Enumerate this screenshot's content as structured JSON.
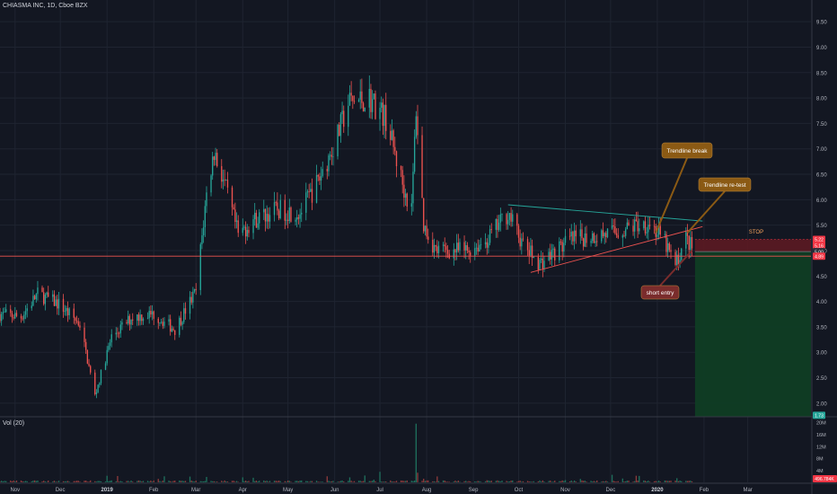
{
  "header": {
    "title": "CHIASMA INC, 1D, Cboe BZX"
  },
  "volume_header": "Vol (20)",
  "colors": {
    "up": "#26a69a",
    "down": "#ef5350",
    "background": "#131722",
    "grid": "#1f2431"
  },
  "chart_data": {
    "type": "candlestick",
    "title": "CHIASMA INC, 1D, Cboe BZX",
    "ylim": [
      1.75,
      9.75
    ],
    "yticks": [
      "9.50",
      "9.00",
      "8.50",
      "8.00",
      "7.50",
      "7.00",
      "6.50",
      "6.00",
      "5.50",
      "5.00",
      "4.50",
      "4.00",
      "3.50",
      "3.00",
      "2.50",
      "2.00"
    ],
    "volume_ticks": [
      "20M",
      "16M",
      "12M",
      "8M",
      "4M"
    ],
    "xticks": [
      "Nov",
      "Dec",
      "2019",
      "Feb",
      "Mar",
      "Apr",
      "May",
      "Jun",
      "Jul",
      "Aug",
      "Sep",
      "Oct",
      "Nov",
      "Dec",
      "2020",
      "Feb",
      "Mar"
    ],
    "price_anchors": [
      {
        "date": "2018-10-22",
        "close": 3.75
      },
      {
        "date": "2018-11-05",
        "close": 3.7
      },
      {
        "date": "2018-11-16",
        "close": 4.15
      },
      {
        "date": "2018-11-30",
        "close": 3.95
      },
      {
        "date": "2018-12-14",
        "close": 3.55
      },
      {
        "date": "2018-12-24",
        "close": 2.15
      },
      {
        "date": "2019-01-04",
        "close": 3.3
      },
      {
        "date": "2019-01-18",
        "close": 3.7
      },
      {
        "date": "2019-02-01",
        "close": 3.75
      },
      {
        "date": "2019-02-15",
        "close": 3.45
      },
      {
        "date": "2019-03-01",
        "close": 4.2
      },
      {
        "date": "2019-03-08",
        "close": 6.1
      },
      {
        "date": "2019-03-13",
        "close": 6.95
      },
      {
        "date": "2019-03-19",
        "close": 6.4
      },
      {
        "date": "2019-03-29",
        "close": 5.3
      },
      {
        "date": "2019-04-08",
        "close": 5.6
      },
      {
        "date": "2019-04-24",
        "close": 5.8
      },
      {
        "date": "2019-05-09",
        "close": 5.75
      },
      {
        "date": "2019-05-20",
        "close": 6.3
      },
      {
        "date": "2019-06-03",
        "close": 7.25
      },
      {
        "date": "2019-06-10",
        "close": 7.9
      },
      {
        "date": "2019-06-24",
        "close": 8.0
      },
      {
        "date": "2019-07-05",
        "close": 7.6
      },
      {
        "date": "2019-07-17",
        "close": 6.2
      },
      {
        "date": "2019-07-22",
        "close": 5.8
      },
      {
        "date": "2019-07-25",
        "close": 7.8
      },
      {
        "date": "2019-07-30",
        "close": 5.5
      },
      {
        "date": "2019-08-07",
        "close": 5.0
      },
      {
        "date": "2019-08-28",
        "close": 5.0
      },
      {
        "date": "2019-09-10",
        "close": 5.2
      },
      {
        "date": "2019-09-24",
        "close": 5.75
      },
      {
        "date": "2019-10-04",
        "close": 5.1
      },
      {
        "date": "2019-10-15",
        "close": 4.75
      },
      {
        "date": "2019-11-04",
        "close": 5.2
      },
      {
        "date": "2019-11-20",
        "close": 5.3
      },
      {
        "date": "2019-12-04",
        "close": 5.35
      },
      {
        "date": "2019-12-18",
        "close": 5.5
      },
      {
        "date": "2019-12-27",
        "close": 5.55
      },
      {
        "date": "2020-01-06",
        "close": 5.15
      },
      {
        "date": "2020-01-13",
        "close": 4.7
      },
      {
        "date": "2020-01-20",
        "close": 5.25
      },
      {
        "date": "2020-01-24",
        "close": 5.05
      }
    ],
    "series": [
      {
        "name": "Resistance trendline",
        "color": "#26a69a",
        "points": [
          {
            "date": "2019-09-24",
            "y": 5.9
          },
          {
            "date": "2020-01-31",
            "y": 5.58
          }
        ]
      },
      {
        "name": "Support trendline",
        "color": "#ef5350",
        "points": [
          {
            "date": "2019-10-09",
            "y": 4.57
          },
          {
            "date": "2020-01-31",
            "y": 5.47
          }
        ]
      }
    ],
    "horizontal_levels": [
      {
        "name": "horizontal level",
        "y": 4.89,
        "color": "#ef5350"
      }
    ],
    "price_labels": [
      {
        "text": "5.22",
        "y": 5.22,
        "bg": "#f23645"
      },
      {
        "text": "5.16",
        "y": 5.1,
        "bg": "#f23645"
      },
      {
        "text": "5.00",
        "y": 4.98,
        "bg": "#2a2e39"
      },
      {
        "text": "4.89",
        "y": 4.89,
        "bg": "#f23645"
      },
      {
        "text": "1.73",
        "y": 1.76,
        "bg": "#26a69a"
      }
    ],
    "volume_price_label": {
      "text": "496.784K"
    },
    "position": {
      "entry": 4.98,
      "stop": 5.22,
      "target": 1.73,
      "start": "2020-01-26",
      "end": "2020-03-31"
    },
    "annotations": [
      {
        "id": "break",
        "text": "Trendline break",
        "bg": "#8b5a14"
      },
      {
        "id": "retest",
        "text": "Trendline re-test",
        "bg": "#8b5a14"
      },
      {
        "id": "entry",
        "text": "short entry",
        "bg": "#7a2c2c"
      },
      {
        "id": "stop",
        "text": "STOP",
        "color": "#f7a35c"
      }
    ]
  }
}
